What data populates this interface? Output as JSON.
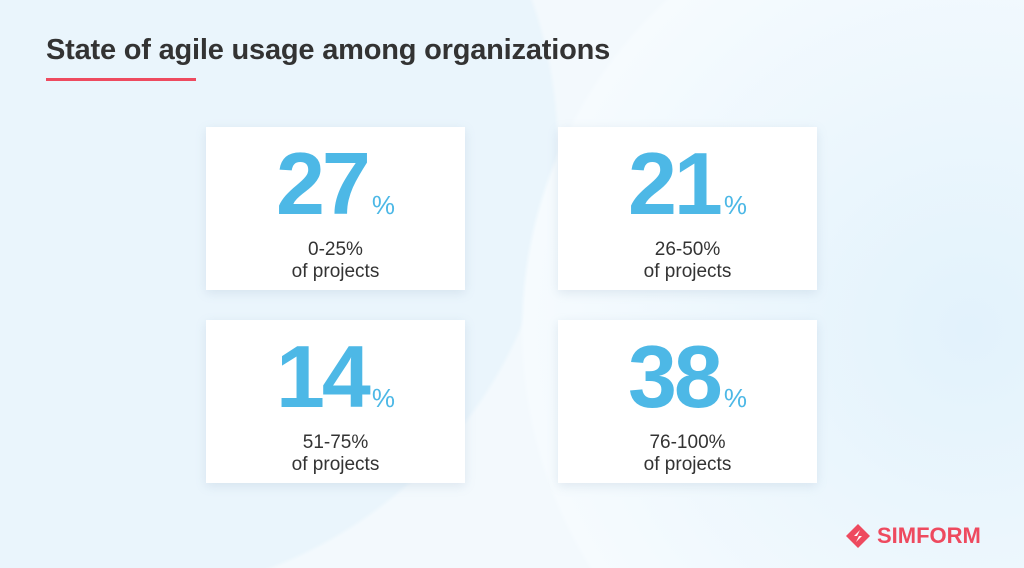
{
  "title": "State of agile usage among organizations",
  "accent": "#ee4a5f",
  "number_color": "#4db8e6",
  "cards": [
    {
      "value": "27",
      "unit": "%",
      "range": "0-25%",
      "suffix": "of projects"
    },
    {
      "value": "21",
      "unit": "%",
      "range": "26-50%",
      "suffix": "of projects"
    },
    {
      "value": "14",
      "unit": "%",
      "range": "51-75%",
      "suffix": "of projects"
    },
    {
      "value": "38",
      "unit": "%",
      "range": "76-100%",
      "suffix": "of projects"
    }
  ],
  "logo": {
    "text": "SIMFORM",
    "icon": "simform-logo-icon"
  }
}
